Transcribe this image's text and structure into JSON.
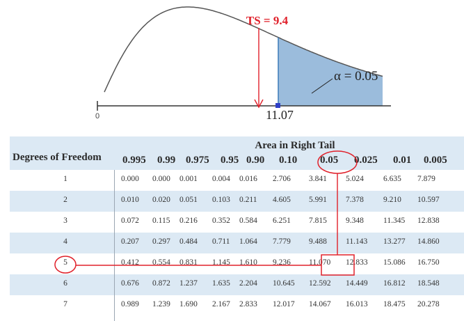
{
  "figure": {
    "ts_label": "TS = 9.4",
    "alpha_label": "α = 0.05",
    "zero_label": "0",
    "critical_label": "11.07",
    "colors": {
      "curve": "#555555",
      "axis": "#333333",
      "tail_fill": "#9bbcdc",
      "tail_edge": "#3a7ab8",
      "highlight": "#e0202a",
      "marker": "#2f3fc7"
    }
  },
  "table": {
    "area_title": "Area in Right Tail",
    "dof_title": "Degrees of Freedom",
    "alphas": [
      "0.995",
      "0.99",
      "0.975",
      "0.95",
      "0.90",
      "0.10",
      "0.05",
      "0.025",
      "0.01",
      "0.005"
    ],
    "highlight_alpha": "0.05",
    "highlight_df": "5",
    "rows": [
      {
        "df": "1",
        "values": [
          "0.000",
          "0.000",
          "0.001",
          "0.004",
          "0.016",
          "2.706",
          "3.841",
          "5.024",
          "6.635",
          "7.879"
        ]
      },
      {
        "df": "2",
        "values": [
          "0.010",
          "0.020",
          "0.051",
          "0.103",
          "0.211",
          "4.605",
          "5.991",
          "7.378",
          "9.210",
          "10.597"
        ]
      },
      {
        "df": "3",
        "values": [
          "0.072",
          "0.115",
          "0.216",
          "0.352",
          "0.584",
          "6.251",
          "7.815",
          "9.348",
          "11.345",
          "12.838"
        ]
      },
      {
        "df": "4",
        "values": [
          "0.207",
          "0.297",
          "0.484",
          "0.711",
          "1.064",
          "7.779",
          "9.488",
          "11.143",
          "13.277",
          "14.860"
        ]
      },
      {
        "df": "5",
        "values": [
          "0.412",
          "0.554",
          "0.831",
          "1.145",
          "1.610",
          "9.236",
          "11.070",
          "12.833",
          "15.086",
          "16.750"
        ]
      },
      {
        "df": "6",
        "values": [
          "0.676",
          "0.872",
          "1.237",
          "1.635",
          "2.204",
          "10.645",
          "12.592",
          "14.449",
          "16.812",
          "18.548"
        ]
      },
      {
        "df": "7",
        "values": [
          "0.989",
          "1.239",
          "1.690",
          "2.167",
          "2.833",
          "12.017",
          "14.067",
          "16.013",
          "18.475",
          "20.278"
        ]
      }
    ]
  }
}
